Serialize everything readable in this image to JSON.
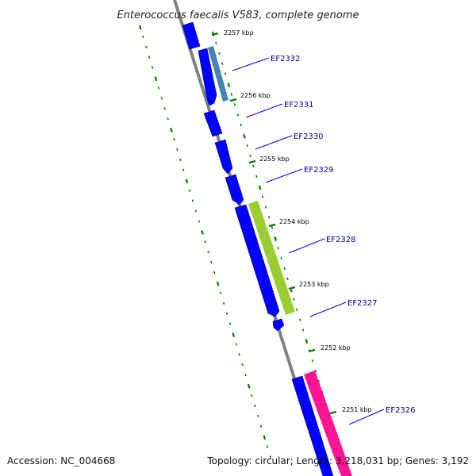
{
  "title": "Enterococcus faecalis V583, complete genome",
  "footer": {
    "accession": "Accession: NC_004668",
    "topology": "Topology: circular; Length: 3,218,031 bp; Genes: 3,192"
  },
  "colors": {
    "backbone": "#808080",
    "forward_gene": "#0000ff",
    "gene_label": "#00008b",
    "ticks": "#008000",
    "ef2332_overlap": "#4682b4",
    "ef2328_overlap": "#9acd32",
    "ef2326_overlap": "#ff1493"
  },
  "kbp_labels": [
    "2257 kbp",
    "2256 kbp",
    "2255 kbp",
    "2254 kbp",
    "2253 kbp",
    "2252 kbp",
    "2251 kbp"
  ],
  "genes": [
    {
      "label": "EF2332"
    },
    {
      "label": "EF2331"
    },
    {
      "label": "EF2330"
    },
    {
      "label": "EF2329"
    },
    {
      "label": "EF2328"
    },
    {
      "label": "EF2327"
    },
    {
      "label": "EF2326"
    }
  ]
}
